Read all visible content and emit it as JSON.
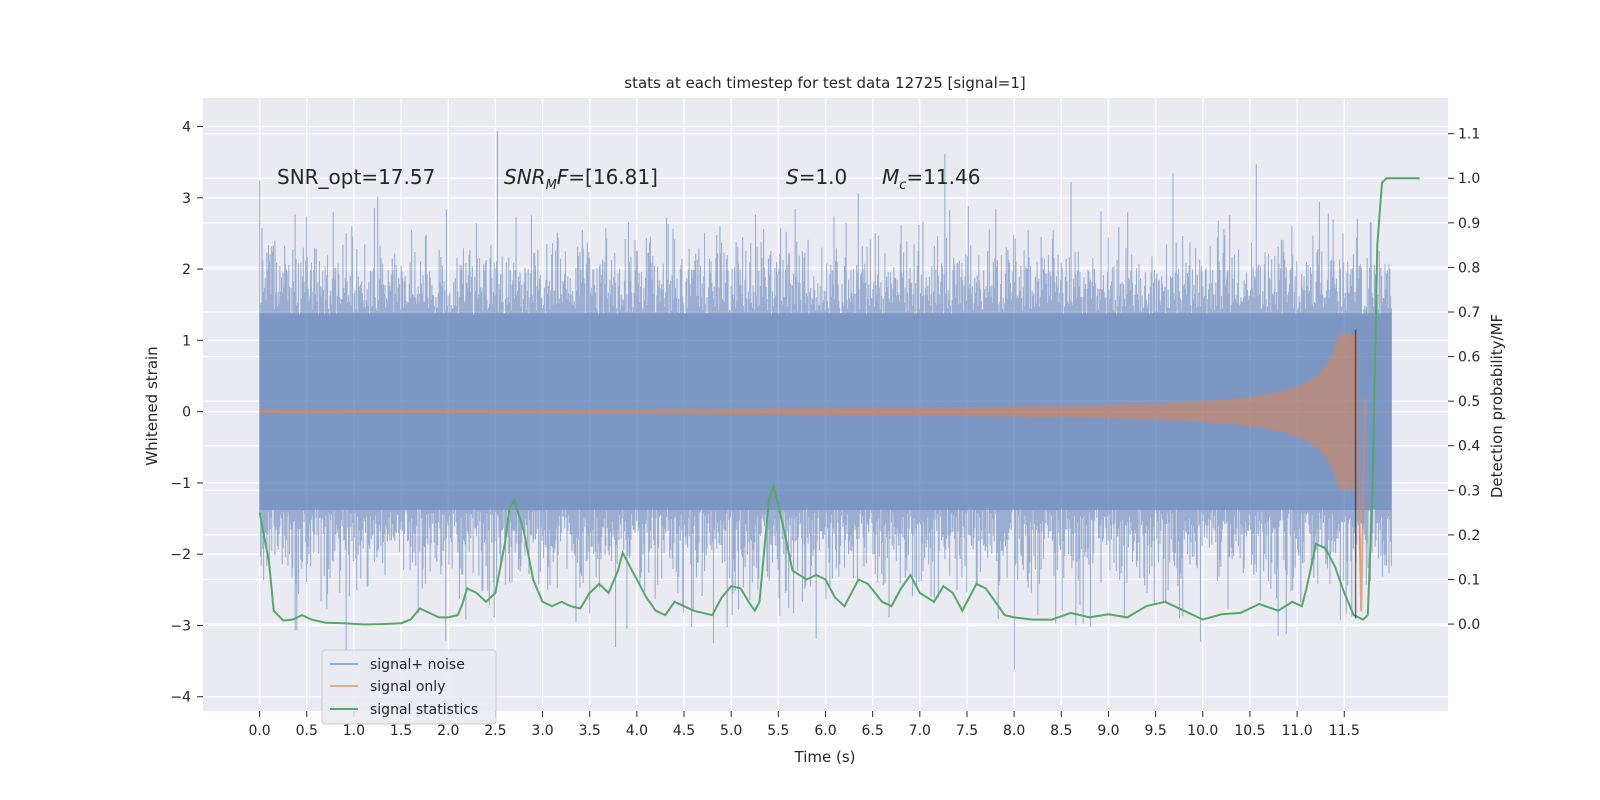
{
  "chart_data": {
    "type": "line",
    "title": "stats at each timestep for test data 12725 [signal=1]",
    "xlabel": "Time (s)",
    "ylabel_left": "Whitened strain",
    "ylabel_right": "Detection probability/MF",
    "xlim": [
      -0.6,
      12.6
    ],
    "ylim_left": [
      -4.2,
      4.4
    ],
    "ylim_right": [
      -0.195,
      1.18
    ],
    "x_ticks": [
      "0.0",
      "0.5",
      "1.0",
      "1.5",
      "2.0",
      "2.5",
      "3.0",
      "3.5",
      "4.0",
      "4.5",
      "5.0",
      "5.5",
      "6.0",
      "6.5",
      "7.0",
      "7.5",
      "8.0",
      "8.5",
      "9.0",
      "9.5",
      "10.0",
      "10.5",
      "11.0",
      "11.5"
    ],
    "y_ticks_left": [
      "−4",
      "−3",
      "−2",
      "−1",
      "0",
      "1",
      "2",
      "3",
      "4"
    ],
    "y_ticks_right": [
      "0.0",
      "0.1",
      "0.2",
      "0.3",
      "0.4",
      "0.5",
      "0.6",
      "0.7",
      "0.8",
      "0.9",
      "1.0",
      "1.1"
    ],
    "grid": true,
    "legend_position": "lower-left",
    "colors": {
      "noise": "#4c72b0",
      "signal": "#dd8452",
      "stats": "#55a868",
      "background": "#eaeaf2"
    },
    "series": [
      {
        "name": "signal+ noise",
        "color": "#4c72b0",
        "description": "noisy whitened strain, 0 to 12 s",
        "x_range": [
          0.0,
          12.0
        ],
        "envelope_abs": 1.4,
        "spike_max": 4.1,
        "spike_min": -3.7
      },
      {
        "name": "signal only",
        "color": "#dd8452",
        "description": "chirp waveform growing to merger",
        "x_range": [
          0.0,
          11.7
        ],
        "merger_time": 11.62,
        "peak_amplitude": 1.1
      },
      {
        "name": "signal statistics",
        "color": "#55a868",
        "axis": "right",
        "points": [
          [
            0.0,
            0.25
          ],
          [
            0.1,
            0.14
          ],
          [
            0.15,
            0.03
          ],
          [
            0.25,
            0.008
          ],
          [
            0.35,
            0.01
          ],
          [
            0.45,
            0.02
          ],
          [
            0.55,
            0.01
          ],
          [
            0.7,
            0.003
          ],
          [
            0.9,
            0.002
          ],
          [
            1.1,
            -0.001
          ],
          [
            1.3,
            0.0
          ],
          [
            1.5,
            0.002
          ],
          [
            1.6,
            0.01
          ],
          [
            1.7,
            0.035
          ],
          [
            1.8,
            0.025
          ],
          [
            1.9,
            0.015
          ],
          [
            2.0,
            0.015
          ],
          [
            2.1,
            0.02
          ],
          [
            2.15,
            0.045
          ],
          [
            2.2,
            0.08
          ],
          [
            2.3,
            0.07
          ],
          [
            2.4,
            0.05
          ],
          [
            2.5,
            0.07
          ],
          [
            2.6,
            0.18
          ],
          [
            2.65,
            0.26
          ],
          [
            2.7,
            0.278
          ],
          [
            2.8,
            0.21
          ],
          [
            2.9,
            0.1
          ],
          [
            3.0,
            0.05
          ],
          [
            3.1,
            0.04
          ],
          [
            3.2,
            0.05
          ],
          [
            3.3,
            0.04
          ],
          [
            3.4,
            0.035
          ],
          [
            3.5,
            0.07
          ],
          [
            3.6,
            0.09
          ],
          [
            3.7,
            0.07
          ],
          [
            3.8,
            0.12
          ],
          [
            3.85,
            0.16
          ],
          [
            3.95,
            0.12
          ],
          [
            4.1,
            0.06
          ],
          [
            4.2,
            0.03
          ],
          [
            4.3,
            0.02
          ],
          [
            4.4,
            0.05
          ],
          [
            4.5,
            0.04
          ],
          [
            4.6,
            0.03
          ],
          [
            4.8,
            0.02
          ],
          [
            4.9,
            0.06
          ],
          [
            5.0,
            0.085
          ],
          [
            5.1,
            0.08
          ],
          [
            5.2,
            0.045
          ],
          [
            5.25,
            0.03
          ],
          [
            5.3,
            0.05
          ],
          [
            5.4,
            0.28
          ],
          [
            5.45,
            0.31
          ],
          [
            5.55,
            0.22
          ],
          [
            5.65,
            0.12
          ],
          [
            5.8,
            0.1
          ],
          [
            5.9,
            0.11
          ],
          [
            6.0,
            0.1
          ],
          [
            6.1,
            0.06
          ],
          [
            6.2,
            0.04
          ],
          [
            6.35,
            0.1
          ],
          [
            6.45,
            0.09
          ],
          [
            6.6,
            0.05
          ],
          [
            6.7,
            0.04
          ],
          [
            6.8,
            0.08
          ],
          [
            6.9,
            0.11
          ],
          [
            7.0,
            0.07
          ],
          [
            7.15,
            0.05
          ],
          [
            7.25,
            0.085
          ],
          [
            7.35,
            0.07
          ],
          [
            7.45,
            0.03
          ],
          [
            7.55,
            0.07
          ],
          [
            7.6,
            0.09
          ],
          [
            7.7,
            0.08
          ],
          [
            7.8,
            0.05
          ],
          [
            7.9,
            0.02
          ],
          [
            8.0,
            0.015
          ],
          [
            8.2,
            0.01
          ],
          [
            8.4,
            0.01
          ],
          [
            8.6,
            0.025
          ],
          [
            8.8,
            0.015
          ],
          [
            9.0,
            0.022
          ],
          [
            9.2,
            0.015
          ],
          [
            9.4,
            0.04
          ],
          [
            9.6,
            0.05
          ],
          [
            9.8,
            0.03
          ],
          [
            10.0,
            0.01
          ],
          [
            10.2,
            0.022
          ],
          [
            10.4,
            0.025
          ],
          [
            10.6,
            0.045
          ],
          [
            10.8,
            0.03
          ],
          [
            10.95,
            0.05
          ],
          [
            11.05,
            0.04
          ],
          [
            11.1,
            0.08
          ],
          [
            11.2,
            0.18
          ],
          [
            11.3,
            0.17
          ],
          [
            11.4,
            0.13
          ],
          [
            11.5,
            0.07
          ],
          [
            11.6,
            0.02
          ],
          [
            11.7,
            0.01
          ],
          [
            11.75,
            0.02
          ],
          [
            11.8,
            0.3
          ],
          [
            11.85,
            0.85
          ],
          [
            11.9,
            0.99
          ],
          [
            11.95,
            1.0
          ],
          [
            12.1,
            1.0
          ],
          [
            12.3,
            1.0
          ]
        ]
      }
    ],
    "annotations": {
      "snr_opt": "SNR_opt=17.57",
      "snr_mf_label": "SNR",
      "snr_mf_sub": "M",
      "snr_mf_rest": "F=[16.81]",
      "s_label": "S",
      "s_value": "=1.0",
      "mc_label": "M",
      "mc_sub": "c",
      "mc_value": "=11.46"
    },
    "legend": [
      "signal+ noise",
      "signal only",
      "signal statistics"
    ]
  }
}
